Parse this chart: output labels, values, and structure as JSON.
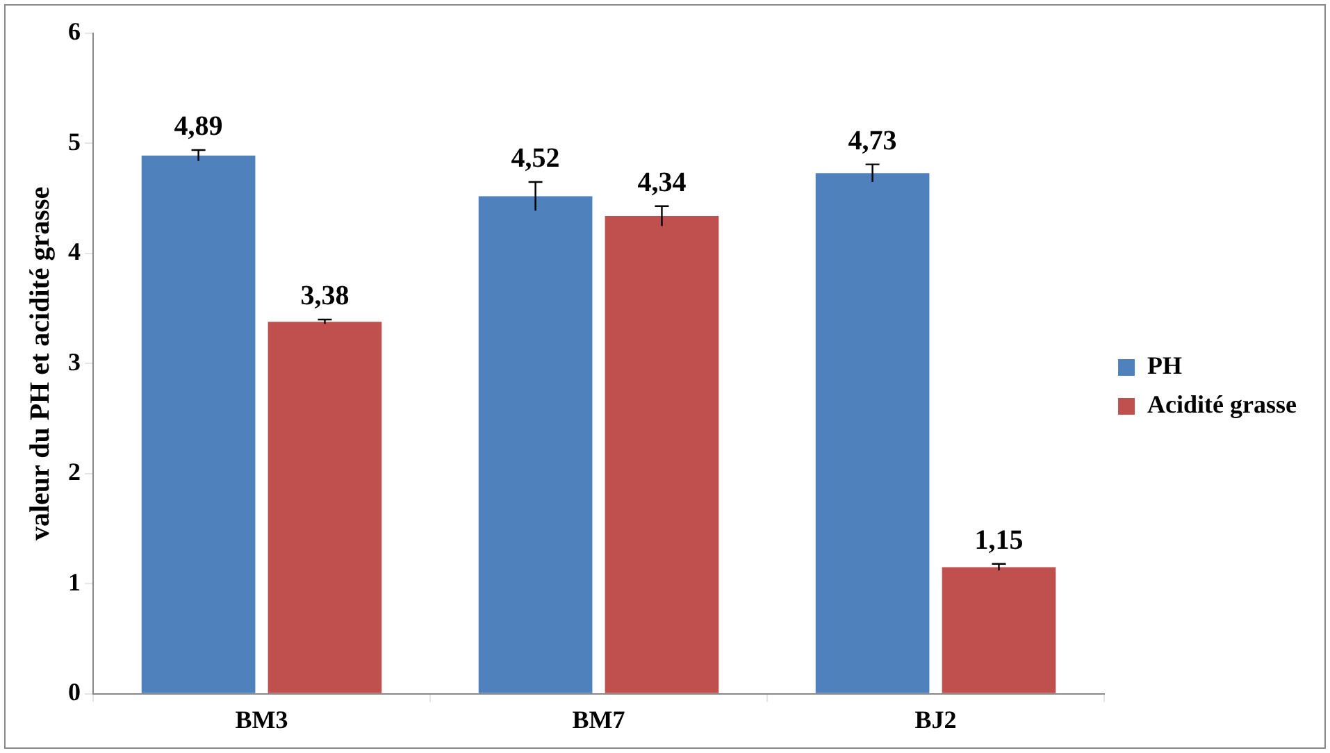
{
  "chart_data": {
    "type": "bar",
    "ylabel": "valeur du PH et acidité grasse",
    "categories": [
      "BM3",
      "BM7",
      "BJ2"
    ],
    "series": [
      {
        "name": "PH",
        "color": "#4f81bd",
        "values": [
          4.89,
          4.52,
          4.73
        ],
        "errors": [
          0.05,
          0.13,
          0.08
        ],
        "value_labels": [
          "4,89",
          "4,52",
          "4,73"
        ]
      },
      {
        "name": "Acidité grasse",
        "color": "#c0504d",
        "values": [
          3.38,
          4.34,
          1.15
        ],
        "errors": [
          0.02,
          0.09,
          0.03
        ],
        "value_labels": [
          "3,38",
          "4,34",
          "1,15"
        ]
      }
    ],
    "ylim": [
      0,
      6
    ],
    "yticks": [
      0,
      1,
      2,
      3,
      4,
      5,
      6
    ],
    "grid": false,
    "legend": "right"
  }
}
